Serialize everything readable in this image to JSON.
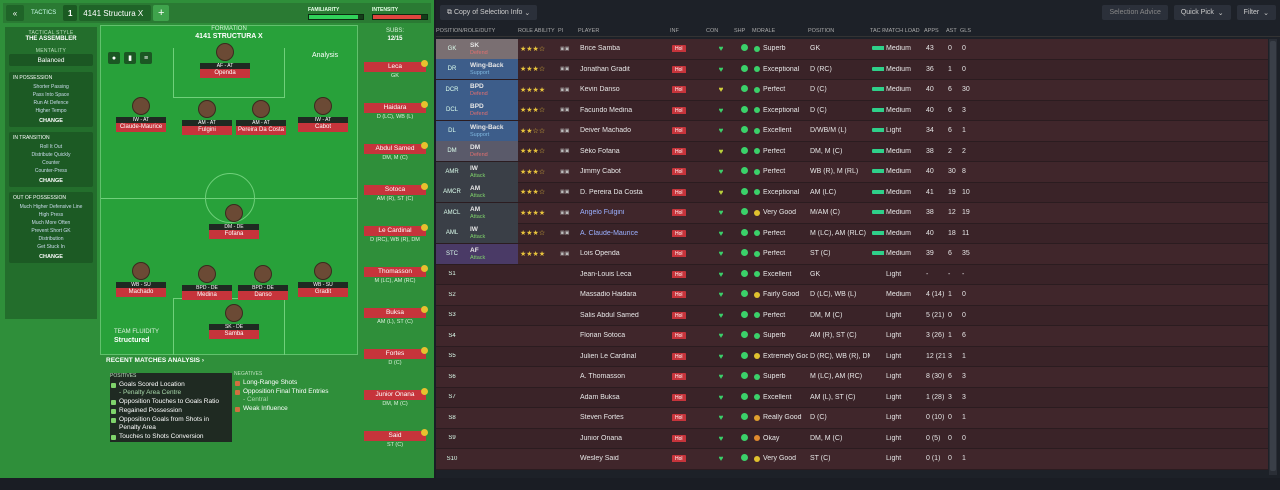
{
  "topbar": {
    "back": "«",
    "tactics_label": "TACTICS",
    "slot": "1",
    "tactic_name": "4141 Structura X",
    "add": "+",
    "familiarity_label": "FAMILIARITY",
    "intensity_label": "INTENSITY",
    "familiarity": 0.9,
    "intensity": 0.88
  },
  "sidebar": {
    "style_label": "TACTICAL STYLE",
    "style_value": "THE ASSEMBLER",
    "mentality_label": "MENTALITY",
    "mentality_value": "Balanced",
    "in_possession": {
      "title": "IN POSSESSION",
      "items": [
        "Shorter Passing",
        "Pass Into Space",
        "Run At Defence",
        "Higher Tempo"
      ],
      "change": "CHANGE"
    },
    "in_transition": {
      "title": "IN TRANSITION",
      "items": [
        "Roll It Out",
        "Distribute Quickly",
        "Counter",
        "Counter-Press"
      ],
      "change": "CHANGE"
    },
    "out_of_possession": {
      "title": "OUT OF POSSESSION",
      "items": [
        "Much Higher Defensive Line",
        "High Press",
        "Much More Often",
        "Prevent Short GK",
        "Distribution",
        "Get Stuck In"
      ],
      "change": "CHANGE"
    }
  },
  "formation": {
    "label": "FORMATION",
    "name": "4141 STRUCTURA X",
    "analysis": "Analysis",
    "fluidity_label": "TEAM FLUIDITY",
    "fluidity_value": "Structured"
  },
  "players": [
    {
      "pos": "AF - AT",
      "name": "Openda"
    },
    {
      "pos": "IW - AT",
      "name": "Claude-Maurice"
    },
    {
      "pos": "AM - AT",
      "name": "Fulgini"
    },
    {
      "pos": "AM - AT",
      "name": "Pereira Da Costa"
    },
    {
      "pos": "IW - AT",
      "name": "Cabot"
    },
    {
      "pos": "DM - DE",
      "name": "Fofana"
    },
    {
      "pos": "WB - SU",
      "name": "Machado"
    },
    {
      "pos": "BPD - DE",
      "name": "Medina"
    },
    {
      "pos": "BPD - DE",
      "name": "Danso"
    },
    {
      "pos": "WB - SU",
      "name": "Gradit"
    },
    {
      "pos": "SK - DE",
      "name": "Samba"
    }
  ],
  "subs": {
    "label": "SUBS:",
    "count": "12/15",
    "items": [
      {
        "name": "Leca",
        "pos": "GK"
      },
      {
        "name": "Haidara",
        "pos": "D (LC), WB (L)"
      },
      {
        "name": "Abdul Samed",
        "pos": "DM, M (C)"
      },
      {
        "name": "Sotoca",
        "pos": "AM (R), ST (C)"
      },
      {
        "name": "Le Cardinal",
        "pos": "D (RC), WB (R), DM"
      },
      {
        "name": "Thomasson",
        "pos": "M (LC), AM (RC)"
      },
      {
        "name": "Buksa",
        "pos": "AM (L), ST (C)"
      },
      {
        "name": "Fortes",
        "pos": "D (C)"
      },
      {
        "name": "Junior Onana",
        "pos": "DM, M (C)"
      },
      {
        "name": "Said",
        "pos": "ST (C)"
      }
    ]
  },
  "recent": {
    "title": "RECENT MATCHES ANALYSIS ›",
    "positives_label": "POSITIVES",
    "negatives_label": "NEGATIVES",
    "positives": [
      {
        "t": "Goals Scored Location",
        "s": "- Penalty Area Centre"
      },
      {
        "t": "Opposition Touches to Goals Ratio",
        "s": ""
      },
      {
        "t": "Regained Possession",
        "s": ""
      },
      {
        "t": "Opposition Goals from Shots in Penalty Area",
        "s": ""
      },
      {
        "t": "Touches to Shots Conversion",
        "s": ""
      }
    ],
    "negatives": [
      {
        "t": "Long-Range Shots",
        "s": ""
      },
      {
        "t": "Opposition Final Third Entries",
        "s": "- Central"
      },
      {
        "t": "Weak Influence",
        "s": ""
      }
    ]
  },
  "right_toolbar": {
    "copy": "Copy of Selection Info",
    "advice": "Selection Advice",
    "quick_pick": "Quick Pick",
    "filter": "Filter"
  },
  "headers": [
    "POSITION/ROLE/DUTY",
    "ROLE ABILITY",
    "PI",
    "PLAYER",
    "INF",
    "CON",
    "SHP",
    "MORALE",
    "POSITION",
    "TAC FAM",
    "MATCH LOAD",
    "APPS",
    "AST",
    "GLS"
  ],
  "rows": [
    {
      "slot": "GK",
      "role": "SK",
      "duty": "Defend",
      "stars": "★★★☆",
      "player": "Brice Samba",
      "inf": "Hol",
      "morale": "Superb",
      "position": "GK",
      "load": "Medium",
      "apps": "43",
      "ast": "0",
      "gls": "0"
    },
    {
      "slot": "DR",
      "role": "Wing-Back",
      "duty": "Support",
      "stars": "★★★☆",
      "player": "Jonathan Gradit",
      "inf": "Hol",
      "morale": "Exceptional",
      "position": "D (RC)",
      "load": "Medium",
      "apps": "36",
      "ast": "1",
      "gls": "0"
    },
    {
      "slot": "DCR",
      "role": "BPD",
      "duty": "Defend",
      "stars": "★★★★",
      "player": "Kevin Danso",
      "inf": "Hol",
      "morale": "Perfect",
      "position": "D (C)",
      "load": "Medium",
      "apps": "40",
      "ast": "6",
      "gls": "30"
    },
    {
      "slot": "DCL",
      "role": "BPD",
      "duty": "Defend",
      "stars": "★★★☆",
      "player": "Facundo Medina",
      "inf": "Hol",
      "morale": "Exceptional",
      "position": "D (C)",
      "load": "Medium",
      "apps": "40",
      "ast": "6",
      "gls": "3"
    },
    {
      "slot": "DL",
      "role": "Wing-Back",
      "duty": "Support",
      "stars": "★★☆☆",
      "player": "Deiver Machado",
      "inf": "Hol",
      "morale": "Excellent",
      "position": "D/WB/M (L)",
      "load": "Light",
      "apps": "34",
      "ast": "6",
      "gls": "1"
    },
    {
      "slot": "DM",
      "role": "DM",
      "duty": "Defend",
      "stars": "★★★☆",
      "player": "Séko Fofana",
      "inf": "Hol",
      "morale": "Perfect",
      "position": "DM, M (C)",
      "load": "Medium",
      "apps": "38",
      "ast": "2",
      "gls": "2"
    },
    {
      "slot": "AMR",
      "role": "IW",
      "duty": "Attack",
      "stars": "★★★☆",
      "player": "Jimmy Cabot",
      "inf": "Hol",
      "morale": "Perfect",
      "position": "WB (R), M (RL)",
      "load": "Medium",
      "apps": "40",
      "ast": "30",
      "gls": "8"
    },
    {
      "slot": "AMCR",
      "role": "AM",
      "duty": "Attack",
      "stars": "★★★☆",
      "player": "D. Pereira Da Costa",
      "inf": "Hol",
      "morale": "Exceptional",
      "position": "AM (LC)",
      "load": "Medium",
      "apps": "41",
      "ast": "19",
      "gls": "10"
    },
    {
      "slot": "AMCL",
      "role": "AM",
      "duty": "Attack",
      "stars": "★★★★",
      "player": "Angelo Fulgini",
      "inf": "Hol",
      "morale": "Very Good",
      "position": "M/AM (C)",
      "load": "Medium",
      "apps": "38",
      "ast": "12",
      "gls": "19"
    },
    {
      "slot": "AML",
      "role": "IW",
      "duty": "Attack",
      "stars": "★★★☆",
      "player": "A. Claude-Maurice",
      "inf": "Hol",
      "morale": "Perfect",
      "position": "M (LC), AM (RLC)",
      "load": "Medium",
      "apps": "40",
      "ast": "18",
      "gls": "11"
    },
    {
      "slot": "STC",
      "role": "AF",
      "duty": "Attack",
      "stars": "★★★★",
      "player": "Lois Openda",
      "inf": "Hol",
      "morale": "Perfect",
      "position": "ST (C)",
      "load": "Medium",
      "apps": "39",
      "ast": "6",
      "gls": "35"
    },
    {
      "slot": "S1",
      "role": "",
      "duty": "",
      "stars": "",
      "player": "Jean-Louis Leca",
      "inf": "Hol",
      "morale": "Excellent",
      "position": "GK",
      "load": "Light",
      "apps": "-",
      "ast": "-",
      "gls": "-"
    },
    {
      "slot": "S2",
      "role": "",
      "duty": "",
      "stars": "",
      "player": "Massadio Haidara",
      "inf": "Hol",
      "morale": "Fairly Good",
      "position": "D (LC), WB (L)",
      "load": "Medium",
      "apps": "4 (14)",
      "ast": "1",
      "gls": "0"
    },
    {
      "slot": "S3",
      "role": "",
      "duty": "",
      "stars": "",
      "player": "Salis Abdul Samed",
      "inf": "Hol",
      "morale": "Perfect",
      "position": "DM, M (C)",
      "load": "Light",
      "apps": "5 (21)",
      "ast": "0",
      "gls": "0"
    },
    {
      "slot": "S4",
      "role": "",
      "duty": "",
      "stars": "",
      "player": "Florian Sotoca",
      "inf": "Hol",
      "morale": "Superb",
      "position": "AM (R), ST (C)",
      "load": "Light",
      "apps": "3 (26)",
      "ast": "1",
      "gls": "6"
    },
    {
      "slot": "S5",
      "role": "",
      "duty": "",
      "stars": "",
      "player": "Julien Le Cardinal",
      "inf": "Hol",
      "morale": "Extremely Good",
      "position": "D (RC), WB (R), DM",
      "load": "Light",
      "apps": "12 (21)",
      "ast": "3",
      "gls": "1"
    },
    {
      "slot": "S6",
      "role": "",
      "duty": "",
      "stars": "",
      "player": "A. Thomasson",
      "inf": "Hol",
      "morale": "Superb",
      "position": "M (LC), AM (RC)",
      "load": "Light",
      "apps": "8 (30)",
      "ast": "6",
      "gls": "3"
    },
    {
      "slot": "S7",
      "role": "",
      "duty": "",
      "stars": "",
      "player": "Adam Buksa",
      "inf": "Hol",
      "morale": "Excellent",
      "position": "AM (L), ST (C)",
      "load": "Light",
      "apps": "1 (28)",
      "ast": "3",
      "gls": "3"
    },
    {
      "slot": "S8",
      "role": "",
      "duty": "",
      "stars": "",
      "player": "Steven Fortes",
      "inf": "Hol",
      "morale": "Really Good",
      "position": "D (C)",
      "load": "Light",
      "apps": "0 (10)",
      "ast": "0",
      "gls": "1"
    },
    {
      "slot": "S9",
      "role": "",
      "duty": "",
      "stars": "",
      "player": "Junior Onana",
      "inf": "Hol",
      "morale": "Okay",
      "position": "DM, M (C)",
      "load": "Light",
      "apps": "0 (5)",
      "ast": "0",
      "gls": "0"
    },
    {
      "slot": "S10",
      "role": "",
      "duty": "",
      "stars": "",
      "player": "Wesley Said",
      "inf": "Hol",
      "morale": "Very Good",
      "position": "ST (C)",
      "load": "Light",
      "apps": "0 (1)",
      "ast": "0",
      "gls": "1"
    }
  ],
  "colors": {
    "pitch": "#28a13a",
    "name_tag": "#c6343b",
    "row_bg": "#40262b",
    "gk": "#7a6f72",
    "def": "#3d5d8a",
    "dm": "#5a5a6a",
    "att": "#3a3f47",
    "st": "#4a3a66"
  }
}
